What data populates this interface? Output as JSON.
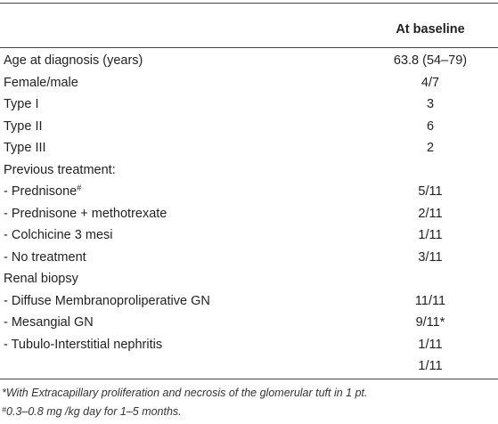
{
  "header": {
    "column": "At baseline"
  },
  "table": {
    "rows": [
      {
        "label": "Age at diagnosis (years)",
        "value": "63.8 (54–79)"
      },
      {
        "label": "Female/male",
        "value": "4/7"
      },
      {
        "label": "Type I",
        "value": "3"
      },
      {
        "label": "Type II",
        "value": "6"
      },
      {
        "label": "Type III",
        "value": "2"
      },
      {
        "label": "Previous treatment:"
      },
      {
        "label": "- Prednisone",
        "label_sup": "#",
        "value": "5/11"
      },
      {
        "label": "- Prednisone + methotrexate",
        "value": "2/11"
      },
      {
        "label": "- Colchicine 3 mesi",
        "value": "1/11"
      },
      {
        "label": "- No treatment",
        "value": "3/11"
      },
      {
        "label": "Renal biopsy"
      },
      {
        "label": "- Diffuse Membranoproliperative GN",
        "value": "11/11"
      },
      {
        "label": "- Mesangial GN",
        "value": "9/11*"
      },
      {
        "label": "- Tubulo-Interstitial nephritis",
        "value": "1/11"
      },
      {
        "value": "1/11"
      }
    ]
  },
  "footnotes": [
    {
      "text": "*With Extracapillary proliferation and necrosis of the glomerular tuft in 1 pt."
    },
    {
      "sup": "#",
      "text": "0.3–0.8 mg /kg day for 1–5 months."
    }
  ]
}
